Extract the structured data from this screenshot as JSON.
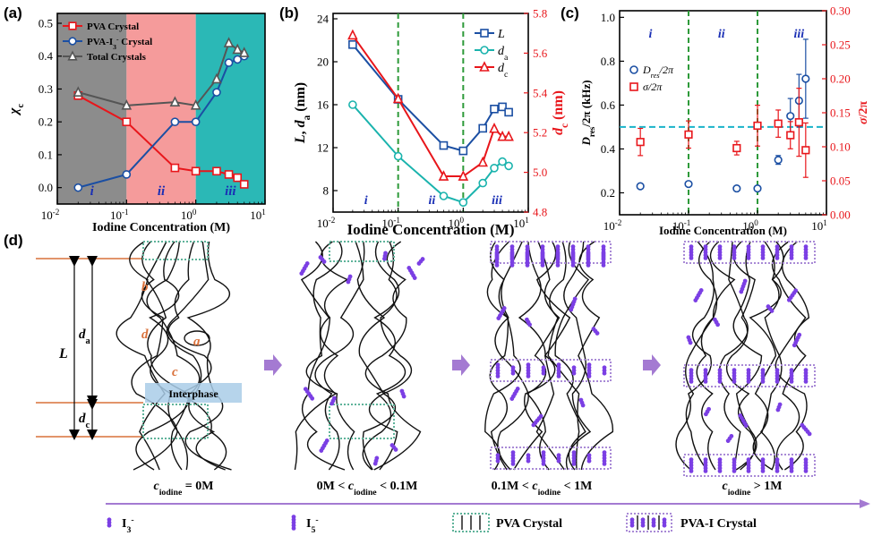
{
  "chart_data": [
    {
      "type": "line",
      "panel": "(a)",
      "xlabel": "Iodine Concentration (M)",
      "ylabel": "χc",
      "xscale": "log",
      "xlim": [
        0.01,
        10
      ],
      "ylim": [
        -0.05,
        0.53
      ],
      "x_ticks": [
        "10-2",
        "10-1",
        "100",
        "101"
      ],
      "y_ticks": [
        "0.0",
        "0.1",
        "0.2",
        "0.3",
        "0.4",
        "0.5"
      ],
      "regions": [
        {
          "label": "i",
          "from": 0.01,
          "to": 0.1,
          "color": "#8c8c8c"
        },
        {
          "label": "ii",
          "from": 0.1,
          "to": 1,
          "color": "#f59b9b"
        },
        {
          "label": "iii",
          "from": 1,
          "to": 10,
          "color": "#2bb8b6"
        }
      ],
      "legend_position": "top-left",
      "series": [
        {
          "name": "PVA Crystal",
          "color": "#e8161b",
          "marker": "square",
          "x": [
            0.02,
            0.1,
            0.5,
            1,
            2,
            3,
            4,
            5
          ],
          "y": [
            0.28,
            0.2,
            0.06,
            0.05,
            0.05,
            0.04,
            0.03,
            0.01
          ]
        },
        {
          "name": "PVA-I3- Crystal",
          "color": "#1b4fa3",
          "marker": "circle",
          "x": [
            0.02,
            0.1,
            0.5,
            1,
            2,
            3,
            4,
            5
          ],
          "y": [
            0.0,
            0.04,
            0.2,
            0.2,
            0.29,
            0.38,
            0.39,
            0.4
          ]
        },
        {
          "name": "Total Crystals",
          "color": "#555555",
          "marker": "triangle",
          "x": [
            0.02,
            0.1,
            0.5,
            1,
            2,
            3,
            4,
            5
          ],
          "y": [
            0.29,
            0.25,
            0.26,
            0.25,
            0.33,
            0.44,
            0.42,
            0.41
          ]
        }
      ]
    },
    {
      "type": "line",
      "panel": "(b)",
      "xlabel": "Iodine Concentration (M)",
      "ylabel": "L, da (nm)",
      "y2label": "dc (nm)",
      "xscale": "log",
      "xlim": [
        0.01,
        10
      ],
      "ylim": [
        6,
        24.5
      ],
      "y2lim": [
        4.8,
        5.8
      ],
      "x_ticks": [
        "10-2",
        "10-1",
        "100",
        "101"
      ],
      "y_ticks": [
        "8",
        "12",
        "16",
        "20",
        "24"
      ],
      "y2_ticks": [
        "4.8",
        "5.0",
        "5.2",
        "5.4",
        "5.6",
        "5.8"
      ],
      "region_labels": [
        "i",
        "ii",
        "iii"
      ],
      "dividers_x": [
        0.1,
        1
      ],
      "legend_position": "top-right",
      "series": [
        {
          "name": "L",
          "axis": "left",
          "color": "#1b4fa3",
          "marker": "square",
          "x": [
            0.02,
            0.1,
            0.5,
            1,
            2,
            3,
            4,
            5
          ],
          "y": [
            21.6,
            16.5,
            12.2,
            11.7,
            13.8,
            15.6,
            15.8,
            15.3
          ]
        },
        {
          "name": "da",
          "axis": "left",
          "color": "#1ab3ad",
          "marker": "circle",
          "x": [
            0.02,
            0.1,
            0.5,
            1,
            2,
            3,
            4,
            5
          ],
          "y": [
            16.0,
            11.2,
            7.5,
            6.9,
            8.7,
            10.1,
            10.7,
            10.3
          ]
        },
        {
          "name": "dc",
          "axis": "right",
          "color": "#e8161b",
          "marker": "triangle",
          "x": [
            0.02,
            0.1,
            0.5,
            1,
            2,
            3,
            4,
            5
          ],
          "y": [
            5.69,
            5.37,
            4.98,
            4.98,
            5.05,
            5.22,
            5.18,
            5.18
          ]
        }
      ]
    },
    {
      "type": "scatter",
      "panel": "(c)",
      "xlabel": "Iodine Concentration (M)",
      "ylabel": "Dres/2π (kHz)",
      "y2label": "σ/2π",
      "xscale": "log",
      "xlim": [
        0.01,
        10
      ],
      "ylim": [
        0.1,
        1.03
      ],
      "y2lim": [
        0,
        0.3
      ],
      "x_ticks": [
        "10-2",
        "10-1",
        "100",
        "101"
      ],
      "y_ticks": [
        "0.2",
        "0.4",
        "0.6",
        "0.8",
        "1.0"
      ],
      "y2_ticks": [
        "0.00",
        "0.05",
        "0.10",
        "0.15",
        "0.20",
        "0.25",
        "0.30"
      ],
      "region_labels": [
        "i",
        "ii",
        "iii"
      ],
      "dividers_x": [
        0.1,
        1
      ],
      "reference_line_y": 0.5,
      "legend_position": "center-right",
      "series": [
        {
          "name": "Dres/2π",
          "axis": "left",
          "color": "#1b4fa3",
          "marker": "circle",
          "x": [
            0.02,
            0.1,
            0.5,
            1,
            2,
            3,
            4,
            5
          ],
          "y": [
            0.23,
            0.24,
            0.22,
            0.22,
            0.35,
            0.55,
            0.62,
            0.72
          ],
          "err": [
            0.01,
            0.01,
            0.01,
            0.01,
            0.02,
            0.08,
            0.12,
            0.18
          ]
        },
        {
          "name": "σ/2π",
          "axis": "right",
          "color": "#e8161b",
          "marker": "square",
          "x": [
            0.02,
            0.1,
            0.5,
            1,
            2,
            3,
            4,
            5
          ],
          "y": [
            0.107,
            0.118,
            0.098,
            0.131,
            0.134,
            0.117,
            0.136,
            0.095
          ],
          "err": [
            0.02,
            0.02,
            0.01,
            0.03,
            0.02,
            0.02,
            0.05,
            0.04
          ]
        }
      ]
    }
  ],
  "panel_d": {
    "letter": "(d)",
    "dimension_labels": {
      "L": "L",
      "da": "da",
      "dc": "dc"
    },
    "structure_labels": {
      "a": "a",
      "b": "b",
      "c": "c",
      "d": "d"
    },
    "interphase": "Interphase",
    "stages": [
      {
        "prefix": "",
        "var": "c",
        "sub": "iodine",
        "suffix": " = 0M"
      },
      {
        "prefix": "0M < ",
        "var": "c",
        "sub": "iodine",
        "suffix": " < 0.1M"
      },
      {
        "prefix": "0.1M < ",
        "var": "c",
        "sub": "iodine",
        "suffix": " < 1M"
      },
      {
        "prefix": "",
        "var": "c",
        "sub": "iodine",
        "suffix": " > 1M"
      }
    ],
    "legend": [
      {
        "label": "I3-",
        "kind": "short-dots"
      },
      {
        "label": "I5-",
        "kind": "long-dots"
      },
      {
        "label": "PVA Crystal",
        "kind": "green-box"
      },
      {
        "label": "PVA-I Crystal",
        "kind": "purple-box"
      }
    ],
    "colors": {
      "chain": "#111111",
      "iodine": "#7b3fe4",
      "pva_box": "#5fb39a",
      "pvai_box": "#a98ad6",
      "arrow": "#a47ad2",
      "interphase": "#a9cce8"
    }
  }
}
